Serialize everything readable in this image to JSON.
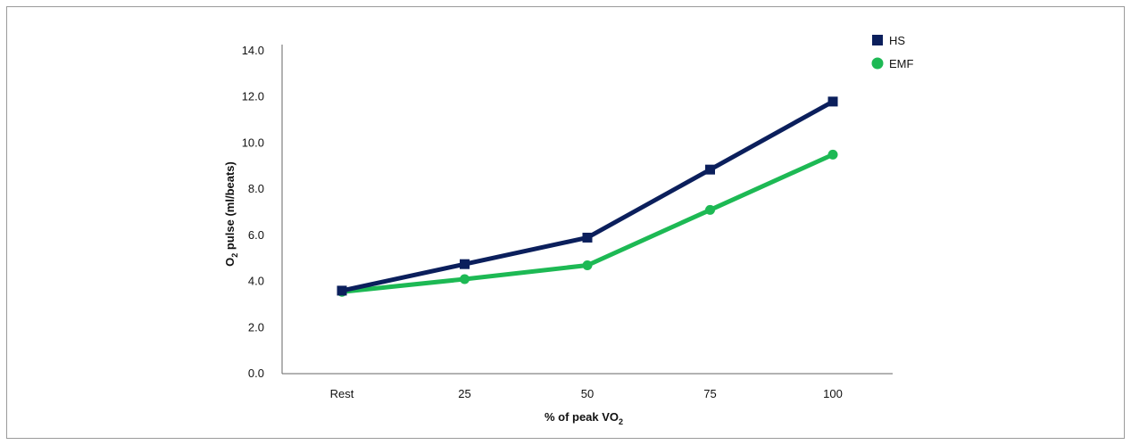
{
  "chart_data": {
    "type": "line",
    "categories": [
      "Rest",
      "25",
      "50",
      "75",
      "100"
    ],
    "series": [
      {
        "name": "HS",
        "values": [
          3.6,
          4.75,
          5.9,
          8.85,
          11.8
        ],
        "color": "#0b1f5c",
        "marker": "square"
      },
      {
        "name": "EMF",
        "values": [
          3.55,
          4.1,
          4.7,
          7.1,
          9.5
        ],
        "color": "#1db954",
        "marker": "circle"
      }
    ],
    "xlabel": {
      "main": "% of peak VO",
      "sub": "2"
    },
    "ylabel": {
      "pre": "O",
      "sub": "2",
      "post": " pulse (ml/beats)"
    },
    "ylim": [
      0,
      14
    ],
    "yticks": [
      0,
      2,
      4,
      6,
      8,
      10,
      12,
      14
    ],
    "ytick_labels": [
      "0.0",
      "2.0",
      "4.0",
      "6.0",
      "8.0",
      "10.0",
      "12.0",
      "14.0"
    ],
    "grid": false,
    "legend_position": "top-right"
  }
}
